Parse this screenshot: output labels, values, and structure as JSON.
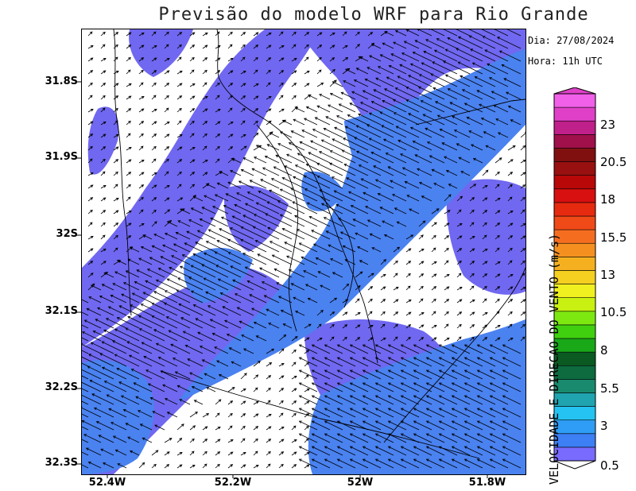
{
  "title": "Previsão do modelo WRF para Rio Grande",
  "date_text": "Dia: 27/08/2024",
  "time_text": "Hora: 11h UTC",
  "colorbar": {
    "title": "VELOCIDADE E DIRECAO DO VENTO (m/s)",
    "labels": [
      "0.5",
      "3",
      "5.5",
      "8",
      "10.5",
      "13",
      "15.5",
      "18",
      "20.5",
      "23"
    ],
    "colors": [
      "#7a6bff",
      "#3d7ff5",
      "#2f9cf5",
      "#25c3f2",
      "#1fa4b0",
      "#1a8a6e",
      "#0d6b3f",
      "#0a5a22",
      "#18a818",
      "#40d010",
      "#7de810",
      "#c8f010",
      "#f0f020",
      "#f5d020",
      "#f5b020",
      "#f59020",
      "#f56e20",
      "#f04a18",
      "#e62a10",
      "#d81010",
      "#b80808",
      "#981010",
      "#801010",
      "#a0104a",
      "#c0208a",
      "#e040c8",
      "#f060e8"
    ]
  },
  "map": {
    "y_ticks": [
      "31.8S",
      "31.9S",
      "32S",
      "32.1S",
      "32.2S",
      "32.3S"
    ],
    "x_ticks": [
      "52.4W",
      "52.2W",
      "52W",
      "51.8W"
    ],
    "field_colors": {
      "low": "#7068f0",
      "mid": "#4a82f0",
      "bg": "#ffffff"
    },
    "arrow_color": "#000000"
  }
}
